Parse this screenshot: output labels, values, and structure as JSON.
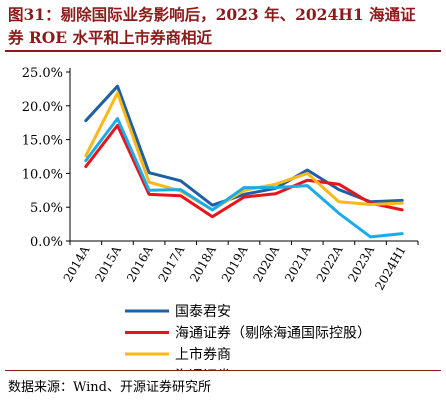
{
  "title": {
    "line1": "图31：剔除国际业务影响后，2023 年、2024H1 海通证",
    "line2": "券 ROE 水平和上市券商相近"
  },
  "source": "数据来源：Wind、开源证券研究所",
  "chart_data": {
    "type": "line",
    "categories": [
      "2014A",
      "2015A",
      "2016A",
      "2017A",
      "2018A",
      "2019A",
      "2020A",
      "2021A",
      "2022A",
      "2023A",
      "2024H1"
    ],
    "ylim": [
      0,
      25
    ],
    "yticks": [
      "0.0%",
      "5.0%",
      "10.0%",
      "15.0%",
      "20.0%",
      "25.0%"
    ],
    "ytick_values": [
      0,
      5,
      10,
      15,
      20,
      25
    ],
    "grid": false,
    "legend_position": "bottom",
    "series": [
      {
        "name": "国泰君安",
        "color": "#1f5fa6",
        "values": [
          17.8,
          22.9,
          10.1,
          8.9,
          5.3,
          6.9,
          7.8,
          10.5,
          7.6,
          5.8,
          6.0
        ]
      },
      {
        "name": "海通证券（剔除海通国际控股）",
        "color": "#e8141c",
        "values": [
          11.0,
          17.1,
          6.9,
          6.7,
          3.6,
          6.5,
          7.0,
          9.0,
          8.4,
          5.6,
          4.6
        ]
      },
      {
        "name": "上市券商",
        "color": "#fbb81b",
        "values": [
          12.6,
          21.9,
          8.7,
          7.4,
          4.6,
          7.5,
          8.4,
          10.0,
          5.8,
          5.4,
          5.6
        ]
      },
      {
        "name": "海通证券",
        "color": "#1aace8",
        "values": [
          11.9,
          18.1,
          7.5,
          7.6,
          4.6,
          7.9,
          7.9,
          8.2,
          4.1,
          0.6,
          1.1
        ]
      }
    ]
  }
}
